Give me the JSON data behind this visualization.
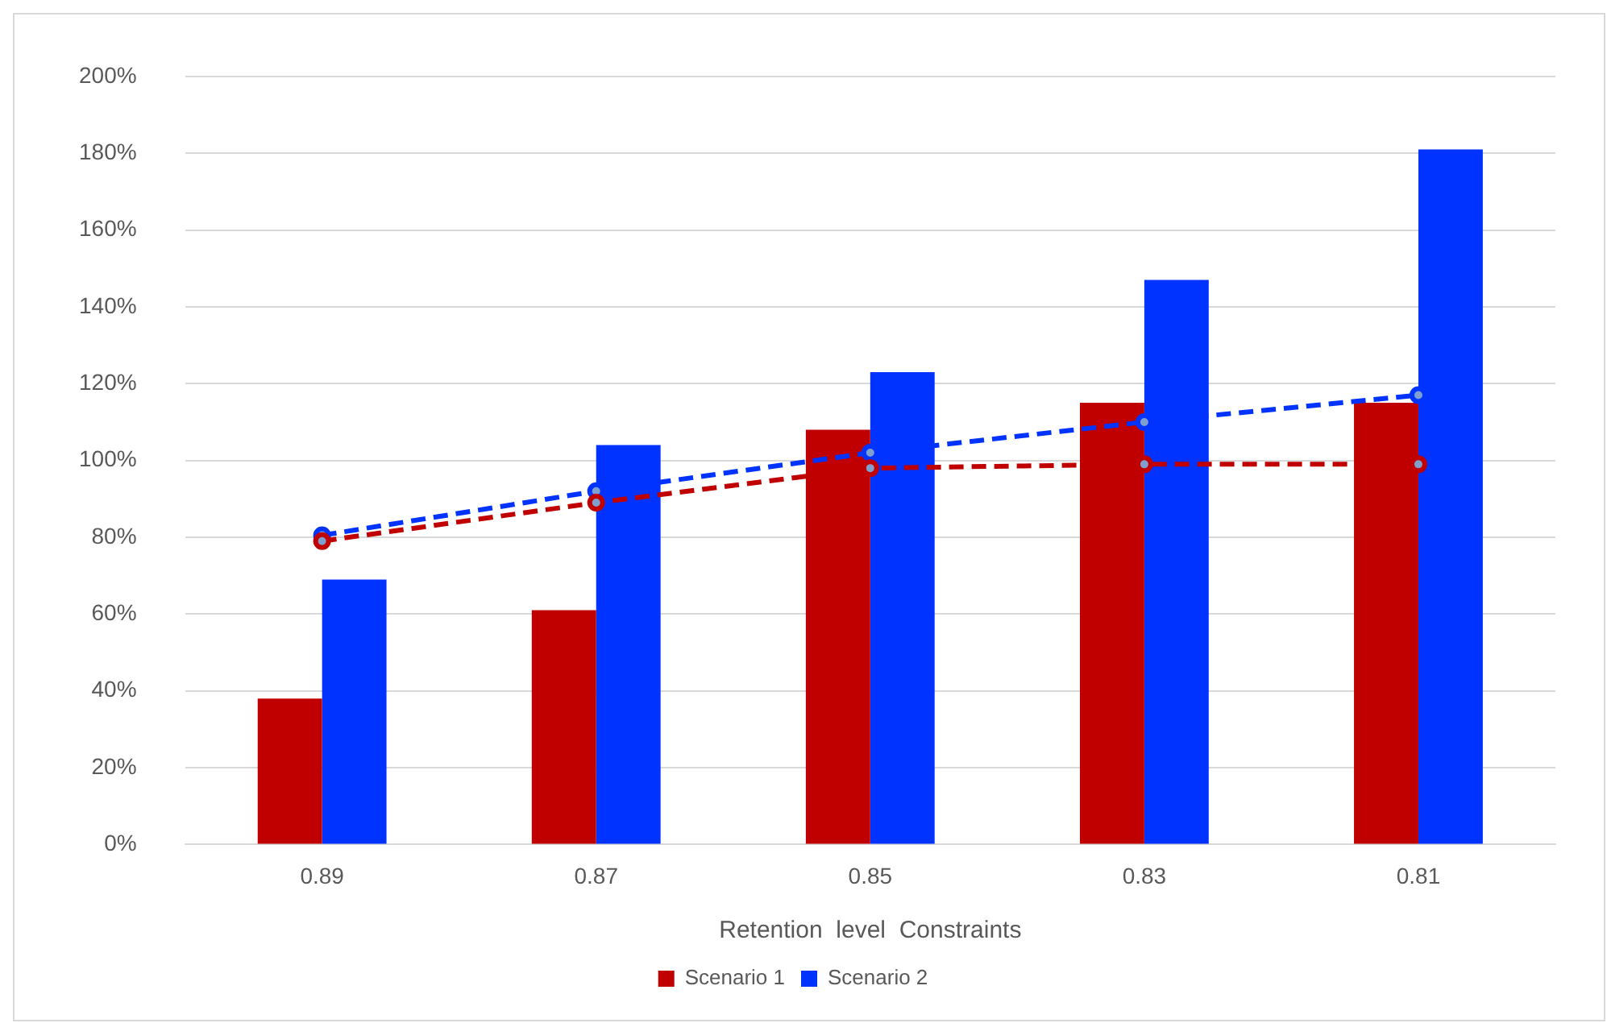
{
  "chart_data": {
    "type": "bar",
    "xlabel": "Retention  level  Constraints",
    "categories": [
      "0.89",
      "0.87",
      "0.85",
      "0.83",
      "0.81"
    ],
    "series": [
      {
        "name": "Scenario 1",
        "color": "#c00000",
        "values": [
          38,
          61,
          108,
          115,
          115
        ]
      },
      {
        "name": "Scenario 2",
        "color": "#0033ff",
        "values": [
          69,
          104,
          123,
          147,
          181
        ]
      },
      {
        "type": "line",
        "color": "#c00000",
        "values": [
          79,
          89,
          98,
          99,
          99
        ],
        "line_style": "dashed",
        "marker": "circle"
      },
      {
        "type": "line",
        "color": "#0033ff",
        "values": [
          80.5,
          92,
          102,
          110,
          117
        ],
        "line_style": "dashed",
        "marker": "circle"
      }
    ],
    "ylim": [
      0,
      200
    ],
    "yticks": [
      {
        "value": 0,
        "label": "0%"
      },
      {
        "value": 20,
        "label": "20%"
      },
      {
        "value": 40,
        "label": "40%"
      },
      {
        "value": 60,
        "label": "60%"
      },
      {
        "value": 80,
        "label": "80%"
      },
      {
        "value": 100,
        "label": "100%"
      },
      {
        "value": 120,
        "label": "120%"
      },
      {
        "value": 140,
        "label": "140%"
      },
      {
        "value": 160,
        "label": "160%"
      },
      {
        "value": 180,
        "label": "180%"
      },
      {
        "value": 200,
        "label": "200%"
      }
    ],
    "grid": "y",
    "legend": "bottom"
  }
}
